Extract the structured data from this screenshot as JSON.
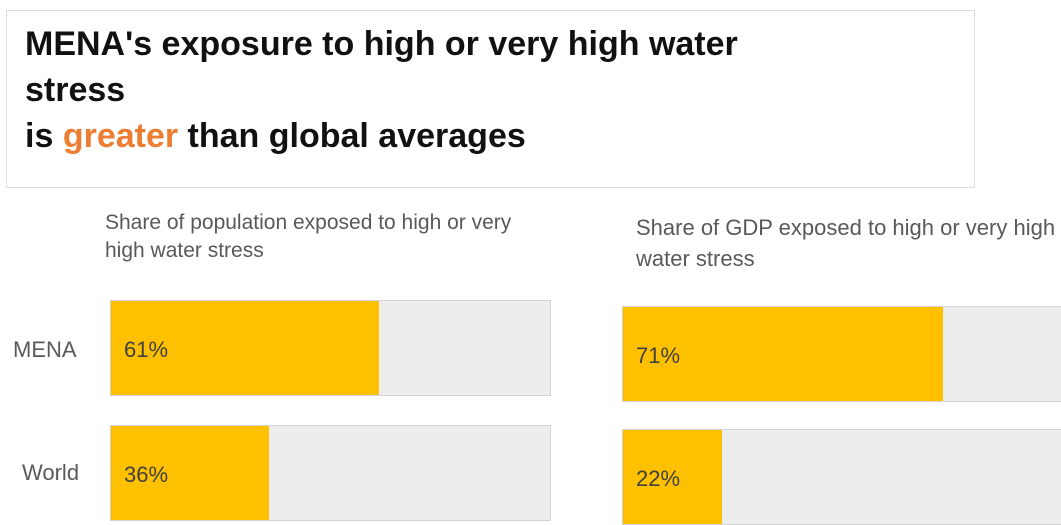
{
  "title": {
    "line1": "MENA's exposure to high or very high water",
    "line2": "stress",
    "line3_pre": "is ",
    "line3_accent": "greater",
    "line3_post": " than global averages",
    "accent_color": "#ed7d31"
  },
  "chart_data": [
    {
      "type": "bar",
      "orientation": "horizontal",
      "title": "Share of population exposed to high or very high water stress",
      "categories": [
        "MENA",
        "World"
      ],
      "values": [
        61,
        36
      ],
      "value_labels": [
        "61%",
        "36%"
      ],
      "xlim": [
        0,
        100
      ],
      "bar_color": "#ffc000",
      "track_color": "#ededed"
    },
    {
      "type": "bar",
      "orientation": "horizontal",
      "title": "Share of GDP exposed to high or very high water stress",
      "categories": [
        "MENA",
        "World"
      ],
      "values": [
        71,
        22
      ],
      "value_labels": [
        "71%",
        "22%"
      ],
      "xlim": [
        0,
        100
      ],
      "bar_color": "#ffc000",
      "track_color": "#ededed"
    }
  ]
}
